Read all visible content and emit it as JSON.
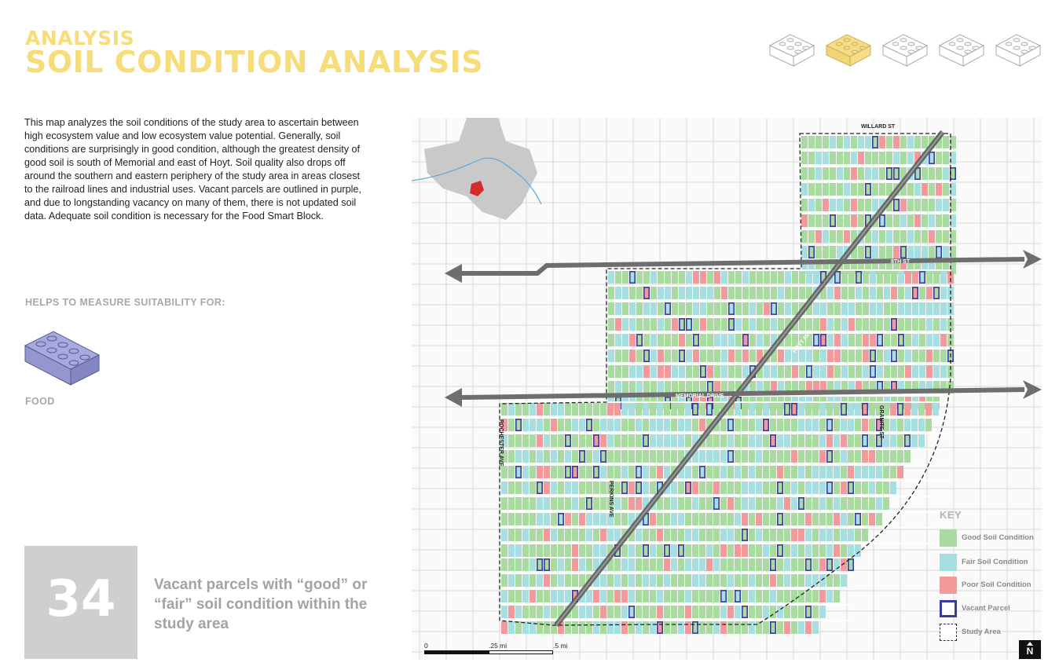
{
  "header": {
    "section": "ANALYSIS",
    "title": "SOIL CONDITION ANALYSIS"
  },
  "description": "This map analyzes the soil conditions of the study area to ascertain between high ecosystem value and low ecosystem value potential. Generally, soil conditions are surprisingly in good condition, although the greatest density of good soil is south of Memorial and east of Hoyt. Soil quality also drops off around the southern and eastern periphery of the study area in areas closest to the railroad lines and industrial uses. Vacant parcels are outlined in purple, and due to longstanding vacancy on many of them, there is not updated soil data. Adequate soil condition is necessary for the Food Smart Block.",
  "suitability": {
    "heading": "HELPS TO MEASURE SUITABILITY FOR:",
    "category": "FOOD",
    "block_color": "#9c9fd4"
  },
  "stat": {
    "value": "34",
    "caption": "Vacant parcels with “good” or “fair” soil condition within the study area"
  },
  "map": {
    "street_labels": [
      "WILLARD ST",
      "8TH ST",
      "MEMORIAL DRIVE",
      "ROCHESTER AVE",
      "PERKINS AVE",
      "HOYT AVE",
      "GRANITE ST"
    ],
    "scale": {
      "labels": [
        "0",
        ".25 mi",
        ".5 mi"
      ]
    },
    "north_label": "N",
    "colors": {
      "good": "#a9dba0",
      "fair": "#a7dfe0",
      "poor": "#f2999b",
      "vacant": "#3b3aa0",
      "arrow": "#6e6e6e"
    }
  },
  "legend": {
    "title": "KEY",
    "items": [
      {
        "label": "Good Soil Condition",
        "color": "#a9dba0"
      },
      {
        "label": "Fair Soil Condition",
        "color": "#a7dfe0"
      },
      {
        "label": "Poor Soil Condition",
        "color": "#f2999b"
      },
      {
        "label": "Vacant Parcel",
        "color": "#3b3aa0"
      },
      {
        "label": "Study Area",
        "color": "#333333"
      }
    ]
  }
}
